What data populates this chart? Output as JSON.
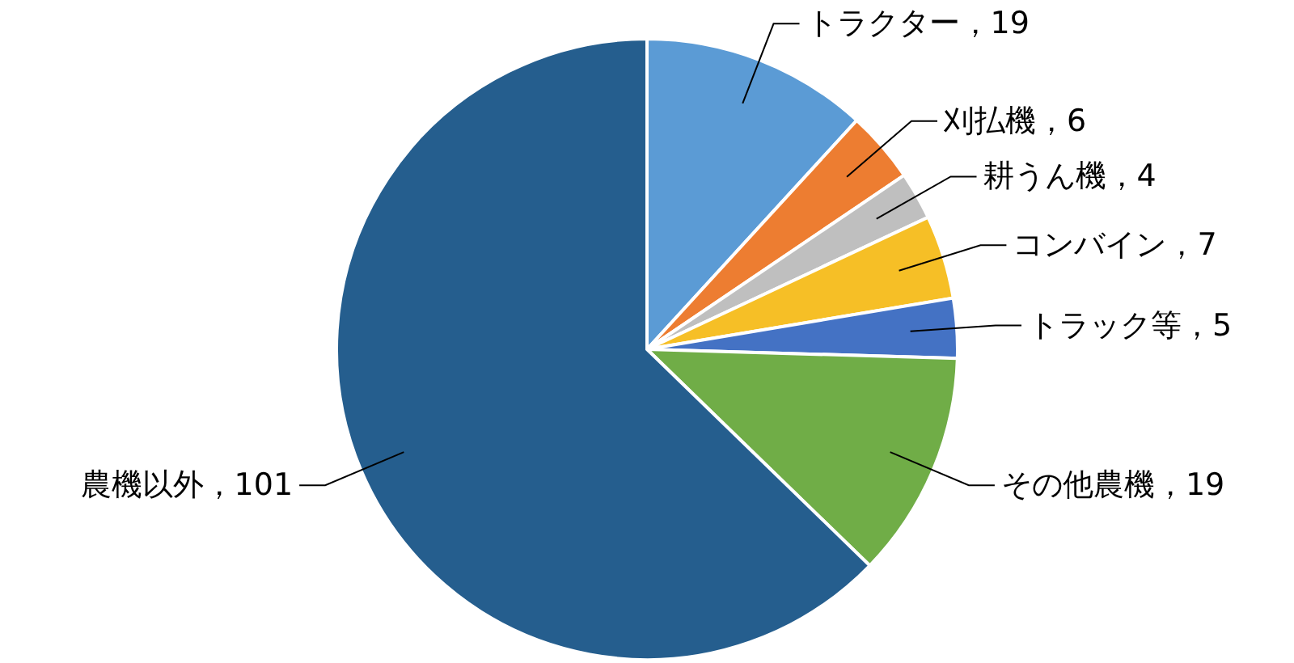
{
  "chart_data": {
    "type": "pie",
    "categories": [
      "トラクター",
      "刈払機",
      "耕うん機",
      "コンバイン",
      "トラック等",
      "その他農機",
      "農機以外"
    ],
    "values": [
      19,
      6,
      4,
      7,
      5,
      19,
      101
    ],
    "value_labels": [
      "，19",
      "，6",
      "，4",
      "，7",
      "，5",
      "，19",
      "，101"
    ],
    "colors": [
      "#5b9bd5",
      "#ed7d31",
      "#bfbfbf",
      "#f6bf26",
      "#4472c4",
      "#70ad47",
      "#255e8e"
    ]
  }
}
